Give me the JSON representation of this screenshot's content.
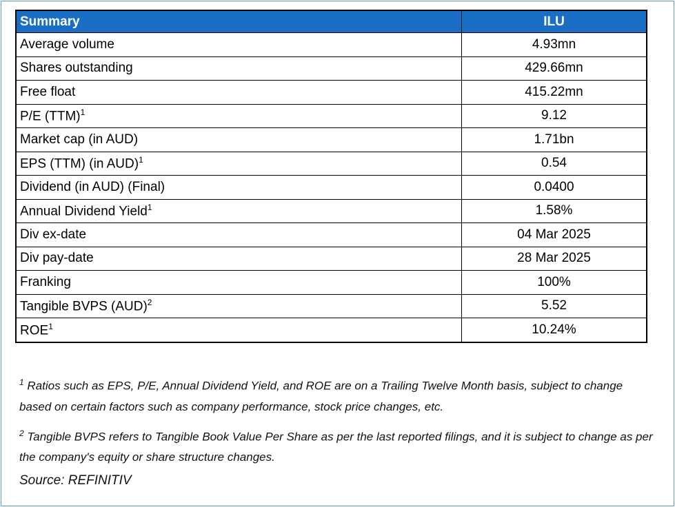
{
  "table": {
    "header": [
      "Summary",
      "ILU"
    ],
    "rows": [
      {
        "label": "Average volume",
        "value": "4.93mn"
      },
      {
        "label": "Shares outstanding",
        "value": "429.66mn"
      },
      {
        "label": "Free float",
        "value": "415.22mn"
      },
      {
        "label": "P/E (TTM)",
        "note": "1",
        "value": "9.12"
      },
      {
        "label": "Market cap (in AUD)",
        "value": "1.71bn"
      },
      {
        "label": "EPS (TTM) (in AUD)",
        "note": "1",
        "value": "0.54"
      },
      {
        "label": "Dividend (in AUD) (Final)",
        "value": "0.0400"
      },
      {
        "label": "Annual Dividend Yield",
        "note": "1",
        "value": "1.58%"
      },
      {
        "label": "Div ex-date",
        "value": "04 Mar 2025"
      },
      {
        "label": "Div pay-date",
        "value": "28 Mar 2025"
      },
      {
        "label": "Franking",
        "value": "100%"
      },
      {
        "label": "Tangible BVPS (AUD)",
        "note": "2",
        "value": "5.52"
      },
      {
        "label": "ROE",
        "note": "1",
        "value": "10.24%"
      }
    ]
  },
  "footnotes": [
    {
      "marker": "1",
      "text": "Ratios such as EPS, P/E,  Annual Dividend Yield, and ROE are on a Trailing Twelve Month basis, subject to change based on certain factors such as company performance, stock price changes, etc."
    },
    {
      "marker": "2",
      "text": "Tangible BVPS refers to Tangible Book Value Per Share as per the last reported filings, and it is subject to change as per the company's equity or share structure changes."
    }
  ],
  "source": "Source: REFINITIV"
}
